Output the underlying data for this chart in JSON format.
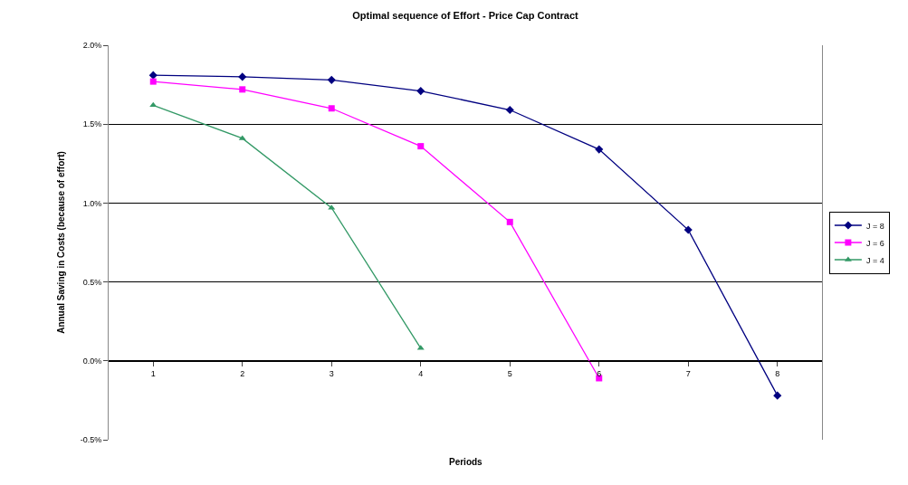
{
  "chart_data": {
    "type": "line",
    "title": "Optimal sequence of Effort - Price Cap Contract",
    "xlabel": "Periods",
    "ylabel": "Annual Saving in Costs (because of effort)",
    "categories": [
      "1",
      "2",
      "3",
      "4",
      "5",
      "6",
      "7",
      "8"
    ],
    "series": [
      {
        "name": "J = 8",
        "color": "#000080",
        "marker": "diamond",
        "values": [
          1.81,
          1.8,
          1.78,
          1.71,
          1.59,
          1.34,
          0.83,
          -0.22
        ]
      },
      {
        "name": "J = 6",
        "color": "#ff00ff",
        "marker": "square",
        "values": [
          1.77,
          1.72,
          1.6,
          1.36,
          0.88,
          -0.11,
          null,
          null
        ]
      },
      {
        "name": "J = 4",
        "color": "#339966",
        "marker": "triangle",
        "values": [
          1.62,
          1.41,
          0.97,
          0.08,
          null,
          null,
          null,
          null
        ]
      }
    ],
    "ylim": [
      -0.5,
      2.0
    ],
    "yticks": [
      {
        "value": -0.5,
        "label": "-0.5%"
      },
      {
        "value": 0.0,
        "label": "0.0%"
      },
      {
        "value": 0.5,
        "label": "0.5%"
      },
      {
        "value": 1.0,
        "label": "1.0%"
      },
      {
        "value": 1.5,
        "label": "1.5%"
      },
      {
        "value": 2.0,
        "label": "2.0%"
      }
    ],
    "grid": "y",
    "legend": "right",
    "line_style": "solid"
  }
}
